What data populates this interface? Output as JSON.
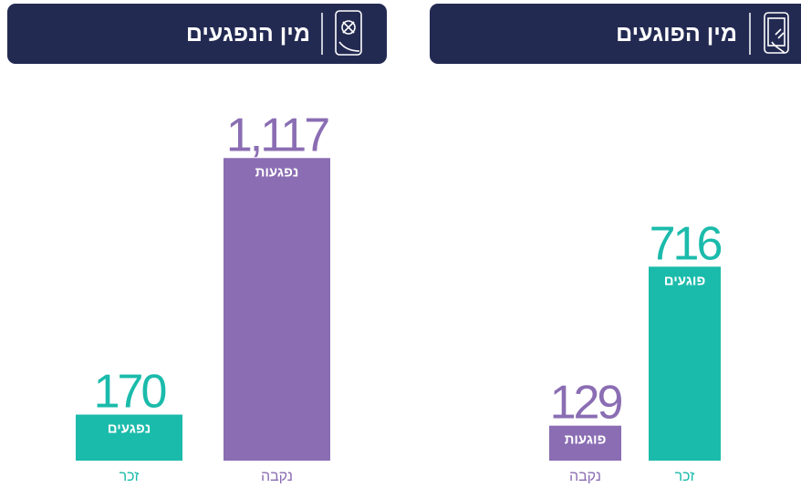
{
  "chart_data": [
    {
      "type": "bar",
      "title": "מין הפוגעים",
      "categories": [
        "נקבה",
        "זכר"
      ],
      "values": [
        129,
        716
      ],
      "bar_labels": [
        "פוגעות",
        "פוגעים"
      ],
      "colors": [
        "#8a6db3",
        "#1bbbab"
      ]
    },
    {
      "type": "bar",
      "title": "מין הנפגעים",
      "categories": [
        "זכר",
        "נקבה"
      ],
      "values": [
        170,
        1117
      ],
      "value_labels": [
        "170",
        "1,117"
      ],
      "bar_labels": [
        "נפגעים",
        "נפגעות"
      ],
      "colors": [
        "#1bbbab",
        "#8a6db3"
      ]
    }
  ]
}
